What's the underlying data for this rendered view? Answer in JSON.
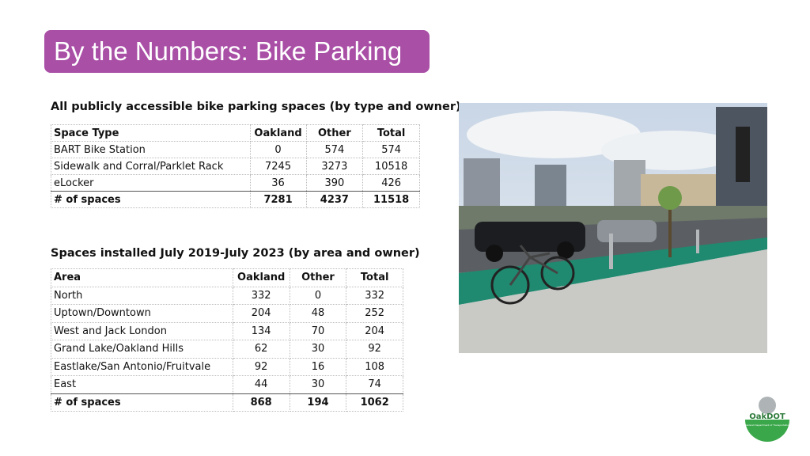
{
  "header": {
    "title": "By the Numbers: Bike Parking"
  },
  "table1": {
    "caption": "All publicly accessible bike parking spaces (by type and owner)",
    "header": [
      "Space Type",
      "Oakland",
      "Other",
      "Total"
    ],
    "rows": [
      [
        "BART Bike Station",
        0,
        574,
        574
      ],
      [
        "Sidewalk and Corral/Parklet Rack",
        7245,
        3273,
        10518
      ],
      [
        "eLocker",
        36,
        390,
        426
      ],
      [
        "# of spaces",
        7281,
        4237,
        11518
      ]
    ]
  },
  "table2": {
    "caption": "Spaces installed July 2019-July 2023 (by area and owner)",
    "header": [
      "Area",
      "Oakland",
      "Other",
      "Total"
    ],
    "rows": [
      [
        "North",
        332,
        0,
        332
      ],
      [
        "Uptown/Downtown",
        204,
        48,
        252
      ],
      [
        "West and Jack London",
        134,
        70,
        204
      ],
      [
        "Grand Lake/Oakland Hills",
        62,
        30,
        92
      ],
      [
        "Eastlake/San Antonio/Fruitvale",
        92,
        16,
        108
      ],
      [
        "East",
        44,
        30,
        74
      ],
      [
        "# of spaces",
        868,
        194,
        1062
      ]
    ]
  },
  "logo": {
    "name": "OakDOT",
    "subtitle": "Oakland Department of Transportation"
  }
}
